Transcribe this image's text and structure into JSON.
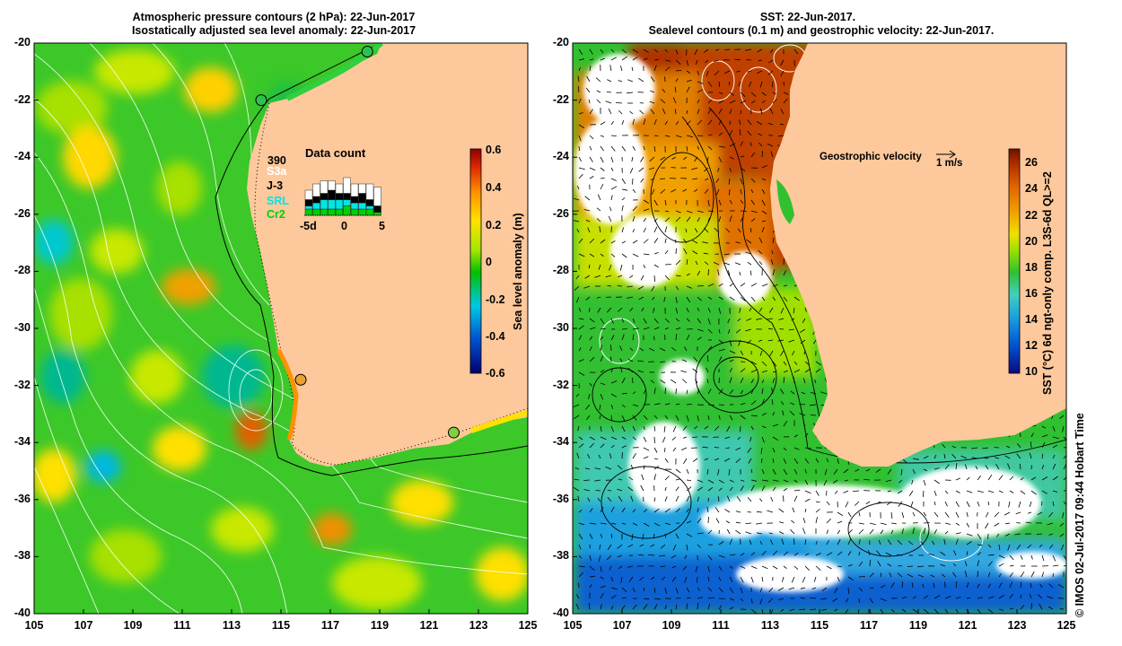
{
  "left_panel": {
    "title_line1": "Atmospheric pressure contours (2 hPa): 22-Jun-2017",
    "title_line2": "Isostatically adjusted sea level anomaly: 22-Jun-2017",
    "data_count": {
      "title": "Data count",
      "total": "390",
      "missions": [
        "S3a",
        "J-3",
        "SRL",
        "Cr2"
      ],
      "mission_colors": [
        "#ffffff",
        "#000000",
        "#00e5e5",
        "#00d000"
      ],
      "axis_ticks": [
        "-5d",
        "0",
        "5"
      ],
      "bars": [
        {
          "day": -5,
          "S3a": 3,
          "J-3": 2,
          "SRL": 1,
          "Cr2": 2
        },
        {
          "day": -4,
          "S3a": 4,
          "J-3": 2,
          "SRL": 2,
          "Cr2": 2
        },
        {
          "day": -3,
          "S3a": 4,
          "J-3": 2,
          "SRL": 3,
          "Cr2": 2
        },
        {
          "day": -2,
          "S3a": 3,
          "J-3": 3,
          "SRL": 3,
          "Cr2": 2
        },
        {
          "day": -1,
          "S3a": 3,
          "J-3": 2,
          "SRL": 3,
          "Cr2": 2
        },
        {
          "day": 0,
          "S3a": 5,
          "J-3": 2,
          "SRL": 2,
          "Cr2": 3
        },
        {
          "day": 1,
          "S3a": 4,
          "J-3": 2,
          "SRL": 2,
          "Cr2": 2
        },
        {
          "day": 2,
          "S3a": 3,
          "J-3": 3,
          "SRL": 2,
          "Cr2": 2
        },
        {
          "day": 3,
          "S3a": 5,
          "J-3": 2,
          "SRL": 1,
          "Cr2": 2
        },
        {
          "day": 4,
          "S3a": 6,
          "J-3": 2,
          "SRL": 0,
          "Cr2": 1
        }
      ]
    },
    "colorbar": {
      "label": "Sea level anomaly (m)",
      "ticks": [
        "0.6",
        "0.4",
        "0.2",
        "0",
        "-0.2",
        "-0.4",
        "-0.6"
      ],
      "colors": [
        "#00006e",
        "#0050d0",
        "#00c8e6",
        "#00c000",
        "#a6e600",
        "#ffe100",
        "#ff9600",
        "#dc2800",
        "#8c0000"
      ]
    },
    "tide_gauges": [
      {
        "lon": 118.5,
        "lat": -20.3,
        "color": "#30c050"
      },
      {
        "lon": 114.2,
        "lat": -22.0,
        "color": "#30c050"
      },
      {
        "lon": 115.8,
        "lat": -31.8,
        "color": "#f0a030"
      },
      {
        "lon": 122.0,
        "lat": -33.65,
        "color": "#80d040"
      }
    ]
  },
  "right_panel": {
    "title_line1": "SST: 22-Jun-2017.",
    "title_line2": "Sealevel contours (0.1 m) and geostrophic velocity: 22-Jun-2017.",
    "velocity_label": "Geostrophic velocity",
    "velocity_scale": "1 m/s",
    "colorbar": {
      "label": "SST (°C) 6d ngt-only comp. L3S-6d QL>=2",
      "ticks": [
        "26",
        "24",
        "22",
        "20",
        "18",
        "16",
        "14",
        "12",
        "10"
      ],
      "colors": [
        "#0a0a80",
        "#0050d0",
        "#1aa0e0",
        "#40d0c0",
        "#30c030",
        "#a0e000",
        "#f0e000",
        "#f0a000",
        "#e06000",
        "#b03000",
        "#701000"
      ]
    }
  },
  "axes": {
    "lat_ticks": [
      "-20",
      "-22",
      "-24",
      "-26",
      "-28",
      "-30",
      "-32",
      "-34",
      "-36",
      "-38",
      "-40"
    ],
    "lon_ticks": [
      "105",
      "107",
      "109",
      "111",
      "113",
      "115",
      "117",
      "119",
      "121",
      "123",
      "125"
    ]
  },
  "credit": "© IMOS 02-Jul-2017 09:44 Hobart Time",
  "colors": {
    "land": "#fdc89b",
    "sea_mid": "#3cc828"
  }
}
